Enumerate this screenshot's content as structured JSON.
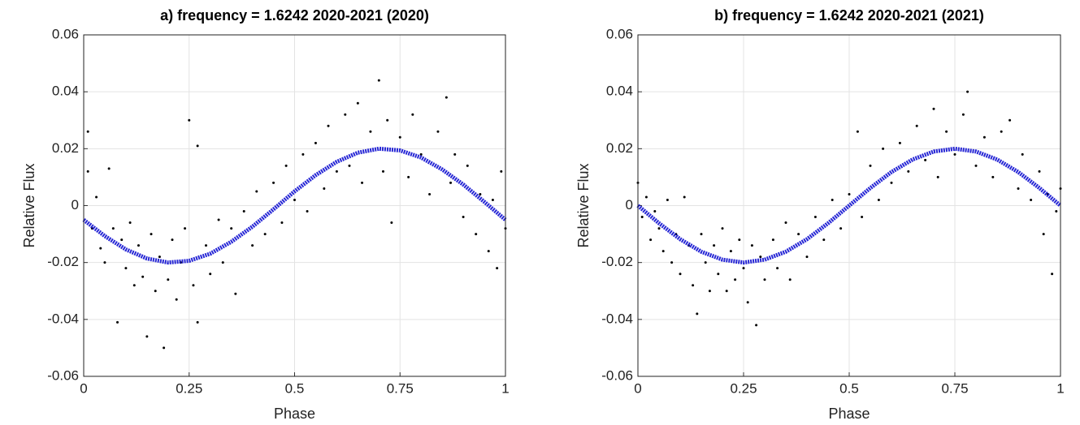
{
  "chart_data": [
    {
      "type": "scatter",
      "title": "a)  frequency = 1.6242    2020-2021 (2020)",
      "xlabel": "Phase",
      "ylabel": "Relative Flux",
      "xlim": [
        0,
        1
      ],
      "ylim": [
        -0.06,
        0.06
      ],
      "xticks": [
        0,
        0.25,
        0.5,
        0.75,
        1
      ],
      "yticks": [
        -0.06,
        -0.04,
        -0.02,
        0,
        0.02,
        0.04,
        0.06
      ],
      "grid": true,
      "series": [
        {
          "color": "#000000",
          "line": false,
          "x": [
            0.01,
            0.01,
            0.02,
            0.03,
            0.04,
            0.05,
            0.06,
            0.07,
            0.08,
            0.09,
            0.1,
            0.11,
            0.12,
            0.13,
            0.14,
            0.15,
            0.16,
            0.17,
            0.18,
            0.19,
            0.2,
            0.21,
            0.22,
            0.23,
            0.24,
            0.25,
            0.26,
            0.27,
            0.27,
            0.29,
            0.3,
            0.32,
            0.33,
            0.35,
            0.36,
            0.38,
            0.4,
            0.41,
            0.43,
            0.45,
            0.47,
            0.48,
            0.5,
            0.52,
            0.53,
            0.55,
            0.57,
            0.58,
            0.6,
            0.62,
            0.63,
            0.65,
            0.66,
            0.68,
            0.7,
            0.71,
            0.72,
            0.73,
            0.75,
            0.77,
            0.78,
            0.8,
            0.82,
            0.84,
            0.86,
            0.87,
            0.88,
            0.9,
            0.91,
            0.93,
            0.94,
            0.96,
            0.97,
            0.98,
            0.99,
            1.0
          ],
          "values": [
            0.026,
            0.012,
            -0.008,
            0.003,
            -0.015,
            -0.02,
            0.013,
            -0.008,
            -0.041,
            -0.012,
            -0.022,
            -0.006,
            -0.028,
            -0.014,
            -0.025,
            -0.046,
            -0.01,
            -0.03,
            -0.018,
            -0.05,
            -0.026,
            -0.012,
            -0.033,
            -0.02,
            -0.008,
            0.03,
            -0.028,
            0.021,
            -0.041,
            -0.014,
            -0.024,
            -0.005,
            -0.02,
            -0.008,
            -0.031,
            -0.002,
            -0.014,
            0.005,
            -0.01,
            0.008,
            -0.006,
            0.014,
            0.002,
            0.018,
            -0.002,
            0.022,
            0.006,
            0.028,
            0.012,
            0.032,
            0.014,
            0.036,
            0.008,
            0.026,
            0.044,
            0.012,
            0.03,
            -0.006,
            0.024,
            0.01,
            0.032,
            0.018,
            0.004,
            0.026,
            0.038,
            0.008,
            0.018,
            -0.004,
            0.014,
            -0.01,
            0.004,
            -0.016,
            0.002,
            -0.022,
            0.012,
            -0.008
          ]
        },
        {
          "color": "#1010d0",
          "line": true,
          "x": [
            0,
            0.05,
            0.1,
            0.15,
            0.2,
            0.25,
            0.3,
            0.35,
            0.4,
            0.45,
            0.5,
            0.55,
            0.6,
            0.65,
            0.7,
            0.75,
            0.8,
            0.85,
            0.9,
            0.95,
            1
          ],
          "values": [
            -0.005,
            -0.0107,
            -0.0154,
            -0.0186,
            -0.02,
            -0.0194,
            -0.0169,
            -0.0127,
            -0.0074,
            -0.0013,
            0.005,
            0.0107,
            0.0154,
            0.0186,
            0.02,
            0.0194,
            0.0169,
            0.0127,
            0.0074,
            0.0013,
            -0.005
          ]
        }
      ]
    },
    {
      "type": "scatter",
      "title": "b)  frequency = 1.6242    2020-2021 (2021)",
      "xlabel": "Phase",
      "ylabel": "Relative Flux",
      "xlim": [
        0,
        1
      ],
      "ylim": [
        -0.06,
        0.06
      ],
      "xticks": [
        0,
        0.25,
        0.5,
        0.75,
        1
      ],
      "yticks": [
        -0.06,
        -0.04,
        -0.02,
        0,
        0.02,
        0.04,
        0.06
      ],
      "grid": true,
      "series": [
        {
          "color": "#000000",
          "line": false,
          "x": [
            0.0,
            0.01,
            0.02,
            0.03,
            0.04,
            0.05,
            0.06,
            0.07,
            0.08,
            0.09,
            0.1,
            0.11,
            0.12,
            0.13,
            0.14,
            0.15,
            0.16,
            0.17,
            0.18,
            0.19,
            0.2,
            0.21,
            0.22,
            0.23,
            0.24,
            0.25,
            0.26,
            0.27,
            0.28,
            0.29,
            0.3,
            0.32,
            0.33,
            0.35,
            0.36,
            0.38,
            0.4,
            0.42,
            0.44,
            0.46,
            0.48,
            0.5,
            0.52,
            0.53,
            0.55,
            0.57,
            0.58,
            0.6,
            0.62,
            0.64,
            0.66,
            0.68,
            0.7,
            0.71,
            0.73,
            0.75,
            0.77,
            0.78,
            0.8,
            0.82,
            0.84,
            0.86,
            0.88,
            0.9,
            0.91,
            0.93,
            0.95,
            0.96,
            0.97,
            0.98,
            0.99,
            1.0
          ],
          "values": [
            0.008,
            -0.004,
            0.003,
            -0.012,
            -0.002,
            -0.008,
            -0.016,
            0.002,
            -0.02,
            -0.01,
            -0.024,
            0.003,
            -0.014,
            -0.028,
            -0.038,
            -0.01,
            -0.02,
            -0.03,
            -0.014,
            -0.024,
            -0.008,
            -0.03,
            -0.016,
            -0.026,
            -0.012,
            -0.022,
            -0.034,
            -0.014,
            -0.042,
            -0.018,
            -0.026,
            -0.012,
            -0.022,
            -0.006,
            -0.026,
            -0.01,
            -0.018,
            -0.004,
            -0.012,
            0.002,
            -0.008,
            0.004,
            0.026,
            -0.004,
            0.014,
            0.002,
            0.02,
            0.008,
            0.022,
            0.012,
            0.028,
            0.016,
            0.034,
            0.01,
            0.026,
            0.018,
            0.032,
            0.04,
            0.014,
            0.024,
            0.01,
            0.026,
            0.03,
            0.006,
            0.018,
            0.002,
            0.012,
            -0.01,
            0.004,
            -0.024,
            -0.002,
            0.006
          ]
        },
        {
          "color": "#1010d0",
          "line": true,
          "x": [
            0,
            0.05,
            0.1,
            0.15,
            0.2,
            0.25,
            0.3,
            0.35,
            0.4,
            0.45,
            0.5,
            0.55,
            0.6,
            0.65,
            0.7,
            0.75,
            0.8,
            0.85,
            0.9,
            0.95,
            1
          ],
          "values": [
            0,
            -0.0062,
            -0.0118,
            -0.0162,
            -0.019,
            -0.02,
            -0.019,
            -0.0162,
            -0.0118,
            -0.0062,
            0,
            0.0062,
            0.0118,
            0.0162,
            0.019,
            0.02,
            0.019,
            0.0162,
            0.0118,
            0.0062,
            0
          ]
        }
      ]
    }
  ]
}
